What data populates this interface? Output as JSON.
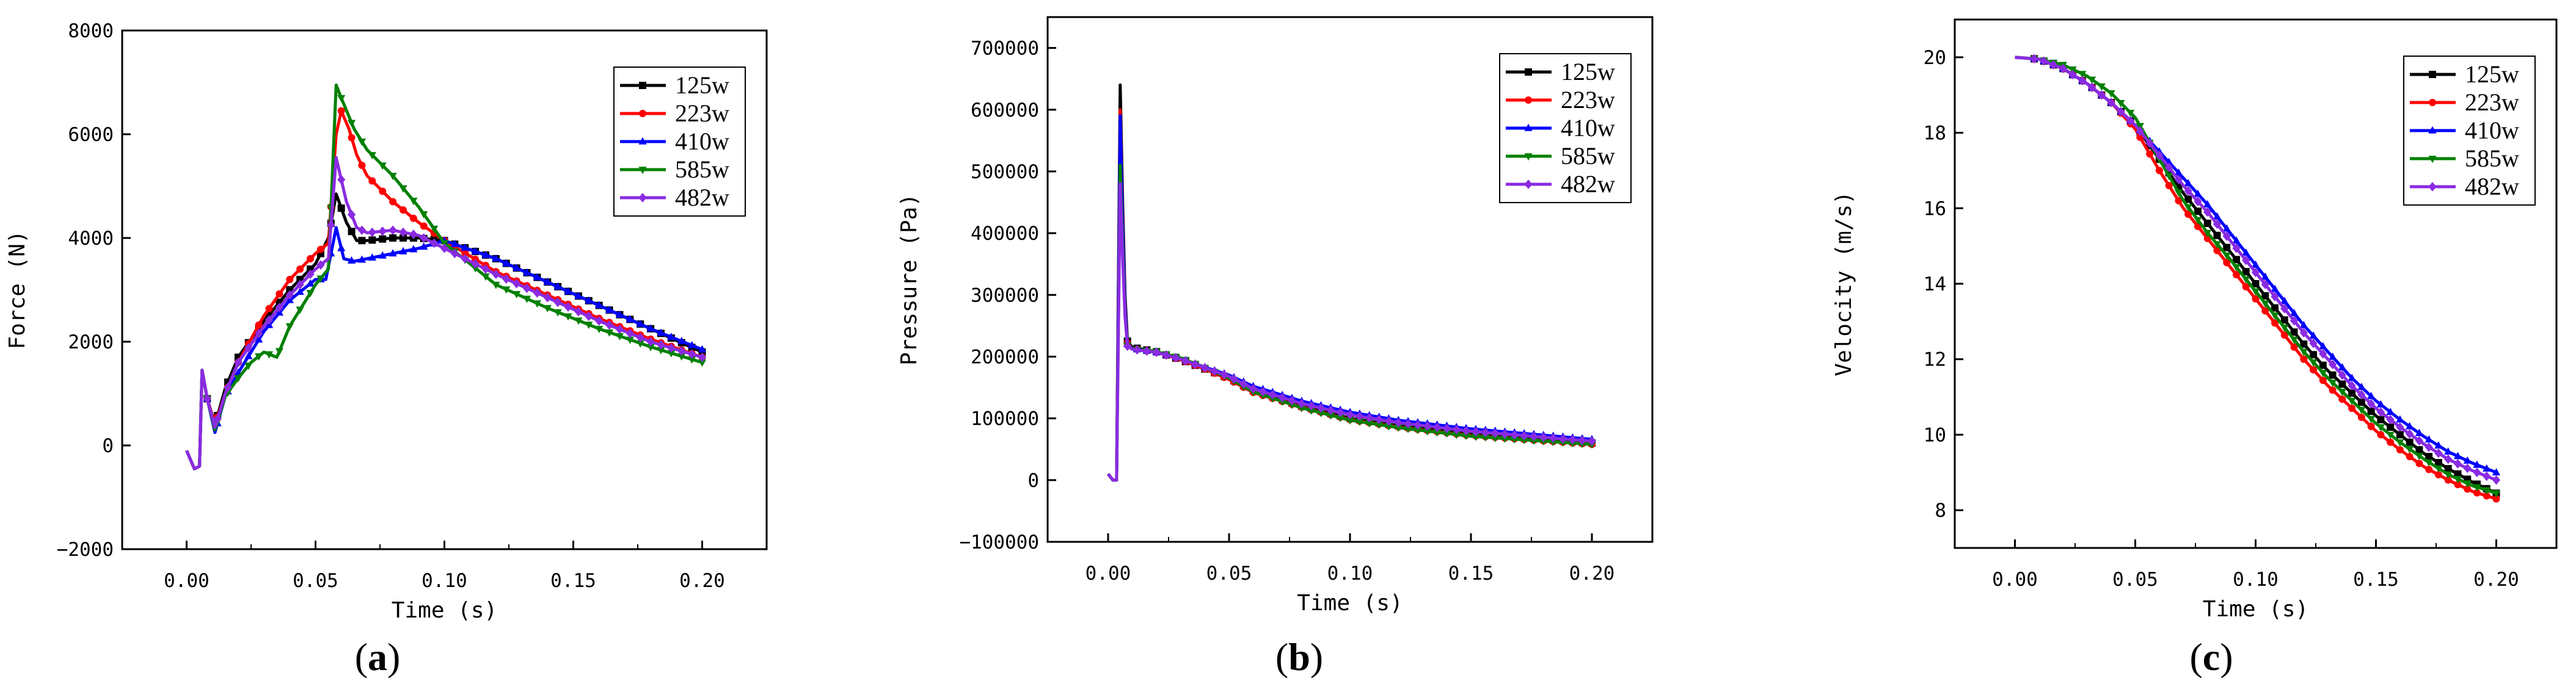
{
  "figure": {
    "panel_labels": [
      "(a)",
      "(b)",
      "(c)"
    ]
  },
  "colors": {
    "125w": "#000000",
    "223w": "#ff0000",
    "410w": "#0000ff",
    "585w": "#008000",
    "482w": "#8a2be2"
  },
  "chart_data": [
    {
      "type": "line",
      "panel": "(a)",
      "title": "",
      "xlabel": "Time (s)",
      "ylabel": "Force (N)",
      "xlim": [
        -0.025,
        0.225
      ],
      "ylim": [
        -2000,
        8000
      ],
      "xticks": [
        0.0,
        0.05,
        0.1,
        0.15,
        0.2
      ],
      "xtick_labels": [
        "0.00",
        "0.05",
        "0.10",
        "0.15",
        "0.20"
      ],
      "yticks": [
        -2000,
        0,
        2000,
        4000,
        6000,
        8000
      ],
      "ytick_labels": [
        "−2000",
        "0",
        "2000",
        "4000",
        "6000",
        "8000"
      ],
      "legend_position": "top-right",
      "series": [
        {
          "name": "125w",
          "x": [
            0,
            0.003,
            0.005,
            0.006,
            0.008,
            0.011,
            0.015,
            0.02,
            0.03,
            0.04,
            0.05,
            0.055,
            0.058,
            0.062,
            0.066,
            0.07,
            0.08,
            0.09,
            0.1,
            0.12,
            0.14,
            0.16,
            0.18,
            0.2
          ],
          "y": [
            -100,
            -450,
            -400,
            1450,
            900,
            400,
            1100,
            1700,
            2400,
            3000,
            3500,
            4000,
            4850,
            4300,
            3950,
            3950,
            4000,
            4000,
            3950,
            3600,
            3150,
            2700,
            2250,
            1800
          ]
        },
        {
          "name": "223w",
          "x": [
            0,
            0.003,
            0.005,
            0.006,
            0.008,
            0.011,
            0.015,
            0.02,
            0.03,
            0.04,
            0.05,
            0.055,
            0.058,
            0.06,
            0.063,
            0.066,
            0.07,
            0.08,
            0.09,
            0.1,
            0.12,
            0.14,
            0.16,
            0.18,
            0.2
          ],
          "y": [
            -100,
            -450,
            -400,
            1450,
            900,
            400,
            1000,
            1600,
            2500,
            3200,
            3700,
            3900,
            6000,
            6450,
            6100,
            5600,
            5200,
            4700,
            4300,
            3950,
            3350,
            2900,
            2450,
            2050,
            1700
          ]
        },
        {
          "name": "410w",
          "x": [
            0,
            0.003,
            0.005,
            0.006,
            0.008,
            0.011,
            0.015,
            0.02,
            0.03,
            0.04,
            0.05,
            0.054,
            0.058,
            0.061,
            0.065,
            0.07,
            0.08,
            0.09,
            0.1,
            0.12,
            0.14,
            0.16,
            0.18,
            0.2
          ],
          "y": [
            -100,
            -450,
            -400,
            1450,
            900,
            250,
            950,
            1400,
            2200,
            2800,
            3200,
            3200,
            4200,
            3600,
            3550,
            3600,
            3700,
            3800,
            3950,
            3600,
            3150,
            2700,
            2250,
            1850
          ]
        },
        {
          "name": "585w",
          "x": [
            0,
            0.003,
            0.005,
            0.006,
            0.008,
            0.011,
            0.015,
            0.02,
            0.025,
            0.03,
            0.035,
            0.04,
            0.05,
            0.055,
            0.058,
            0.06,
            0.065,
            0.07,
            0.08,
            0.09,
            0.1,
            0.12,
            0.14,
            0.16,
            0.18,
            0.2
          ],
          "y": [
            -100,
            -450,
            -400,
            1450,
            900,
            300,
            950,
            1300,
            1600,
            1800,
            1700,
            2300,
            3100,
            3400,
            6950,
            6700,
            6100,
            5700,
            5200,
            4600,
            3900,
            3100,
            2650,
            2250,
            1900,
            1600
          ]
        },
        {
          "name": "482w",
          "x": [
            0,
            0.003,
            0.005,
            0.006,
            0.008,
            0.011,
            0.015,
            0.02,
            0.03,
            0.04,
            0.05,
            0.055,
            0.058,
            0.062,
            0.066,
            0.07,
            0.08,
            0.09,
            0.1,
            0.12,
            0.14,
            0.16,
            0.18,
            0.2
          ],
          "y": [
            -100,
            -450,
            -400,
            1450,
            900,
            350,
            1000,
            1600,
            2300,
            2900,
            3400,
            3600,
            5550,
            4700,
            4200,
            4100,
            4150,
            4050,
            3800,
            3300,
            2850,
            2400,
            2000,
            1700
          ]
        }
      ]
    },
    {
      "type": "line",
      "panel": "(b)",
      "title": "",
      "xlabel": "Time (s)",
      "ylabel": "Pressure (Pa)",
      "xlim": [
        -0.025,
        0.225
      ],
      "ylim": [
        -100000,
        750000
      ],
      "xticks": [
        0.0,
        0.05,
        0.1,
        0.15,
        0.2
      ],
      "xtick_labels": [
        "0.00",
        "0.05",
        "0.10",
        "0.15",
        "0.20"
      ],
      "yticks": [
        -100000,
        0,
        100000,
        200000,
        300000,
        400000,
        500000,
        600000,
        700000
      ],
      "ytick_labels": [
        "−100000",
        "0",
        "100000",
        "200000",
        "300000",
        "400000",
        "500000",
        "600000",
        "700000"
      ],
      "legend_position": "top-right",
      "series": [
        {
          "name": "125w",
          "x": [
            0,
            0.002,
            0.0035,
            0.005,
            0.006,
            0.007,
            0.008,
            0.01,
            0.02,
            0.03,
            0.04,
            0.05,
            0.06,
            0.08,
            0.1,
            0.12,
            0.15,
            0.2
          ],
          "y": [
            10000,
            0,
            0,
            640000,
            450000,
            300000,
            225000,
            215000,
            208000,
            195000,
            180000,
            165000,
            145000,
            120000,
            100000,
            88000,
            75000,
            60000
          ]
        },
        {
          "name": "223w",
          "x": [
            0,
            0.002,
            0.0035,
            0.005,
            0.006,
            0.007,
            0.008,
            0.01,
            0.02,
            0.03,
            0.04,
            0.05,
            0.06,
            0.08,
            0.1,
            0.12,
            0.15,
            0.2
          ],
          "y": [
            10000,
            0,
            0,
            600000,
            430000,
            290000,
            222000,
            213000,
            207000,
            195000,
            180000,
            163000,
            142000,
            118000,
            98000,
            86000,
            72000,
            58000
          ]
        },
        {
          "name": "410w",
          "x": [
            0,
            0.002,
            0.0035,
            0.005,
            0.006,
            0.007,
            0.008,
            0.01,
            0.02,
            0.03,
            0.04,
            0.05,
            0.06,
            0.08,
            0.1,
            0.12,
            0.15,
            0.2
          ],
          "y": [
            10000,
            0,
            0,
            590000,
            420000,
            285000,
            220000,
            213000,
            207000,
            197000,
            183000,
            170000,
            152000,
            128000,
            110000,
            97000,
            83000,
            66000
          ]
        },
        {
          "name": "585w",
          "x": [
            0,
            0.002,
            0.0035,
            0.005,
            0.006,
            0.007,
            0.008,
            0.01,
            0.02,
            0.03,
            0.04,
            0.05,
            0.06,
            0.08,
            0.1,
            0.12,
            0.15,
            0.2
          ],
          "y": [
            10000,
            0,
            0,
            510000,
            380000,
            270000,
            218000,
            212000,
            208000,
            198000,
            182000,
            165000,
            143000,
            117000,
            97000,
            85000,
            71000,
            58000
          ]
        },
        {
          "name": "482w",
          "x": [
            0,
            0.002,
            0.0035,
            0.005,
            0.006,
            0.007,
            0.008,
            0.01,
            0.02,
            0.03,
            0.04,
            0.05,
            0.06,
            0.08,
            0.1,
            0.12,
            0.15,
            0.2
          ],
          "y": [
            10000,
            0,
            0,
            480000,
            360000,
            265000,
            217000,
            212000,
            207000,
            196000,
            182000,
            168000,
            148000,
            124000,
            106000,
            93000,
            79000,
            63000
          ]
        }
      ]
    },
    {
      "type": "line",
      "panel": "(c)",
      "title": "",
      "xlabel": "Time (s)",
      "ylabel": "Velocity (m/s)",
      "xlim": [
        -0.025,
        0.225
      ],
      "ylim": [
        7,
        21
      ],
      "xticks": [
        0.0,
        0.05,
        0.1,
        0.15,
        0.2
      ],
      "xtick_labels": [
        "0.00",
        "0.05",
        "0.10",
        "0.15",
        "0.20"
      ],
      "yticks": [
        8,
        10,
        12,
        14,
        16,
        18,
        20
      ],
      "ytick_labels": [
        "8",
        "10",
        "12",
        "14",
        "16",
        "18",
        "20"
      ],
      "legend_position": "top-right",
      "series": [
        {
          "name": "125w",
          "x": [
            0,
            0.01,
            0.02,
            0.03,
            0.04,
            0.05,
            0.06,
            0.07,
            0.08,
            0.09,
            0.1,
            0.11,
            0.12,
            0.13,
            0.14,
            0.15,
            0.16,
            0.17,
            0.18,
            0.19,
            0.2
          ],
          "y": [
            20,
            19.95,
            19.7,
            19.3,
            18.8,
            18.2,
            17.3,
            16.4,
            15.6,
            14.8,
            14.0,
            13.2,
            12.4,
            11.7,
            11.1,
            10.5,
            10.0,
            9.5,
            9.1,
            8.75,
            8.45
          ]
        },
        {
          "name": "223w",
          "x": [
            0,
            0.01,
            0.02,
            0.03,
            0.04,
            0.05,
            0.06,
            0.07,
            0.08,
            0.09,
            0.1,
            0.11,
            0.12,
            0.13,
            0.14,
            0.15,
            0.16,
            0.17,
            0.18,
            0.19,
            0.2
          ],
          "y": [
            20,
            19.95,
            19.7,
            19.3,
            18.8,
            18.1,
            17.0,
            16.0,
            15.2,
            14.4,
            13.6,
            12.8,
            12.0,
            11.3,
            10.7,
            10.1,
            9.6,
            9.15,
            8.8,
            8.5,
            8.3
          ]
        },
        {
          "name": "410w",
          "x": [
            0,
            0.01,
            0.02,
            0.03,
            0.04,
            0.05,
            0.06,
            0.07,
            0.08,
            0.09,
            0.1,
            0.11,
            0.12,
            0.13,
            0.14,
            0.15,
            0.16,
            0.17,
            0.18,
            0.19,
            0.2
          ],
          "y": [
            20,
            19.95,
            19.7,
            19.3,
            18.8,
            18.2,
            17.5,
            16.8,
            16.1,
            15.3,
            14.5,
            13.7,
            12.9,
            12.2,
            11.5,
            10.9,
            10.4,
            9.95,
            9.55,
            9.25,
            9.0
          ]
        },
        {
          "name": "585w",
          "x": [
            0,
            0.01,
            0.02,
            0.03,
            0.04,
            0.05,
            0.06,
            0.07,
            0.08,
            0.09,
            0.1,
            0.11,
            0.12,
            0.13,
            0.14,
            0.15,
            0.16,
            0.17,
            0.18,
            0.19,
            0.2
          ],
          "y": [
            20,
            19.95,
            19.8,
            19.5,
            19.05,
            18.4,
            17.3,
            16.2,
            15.35,
            14.6,
            13.8,
            13.0,
            12.2,
            11.5,
            10.9,
            10.3,
            9.8,
            9.35,
            8.95,
            8.65,
            8.45
          ]
        },
        {
          "name": "482w",
          "x": [
            0,
            0.01,
            0.02,
            0.03,
            0.04,
            0.05,
            0.06,
            0.07,
            0.08,
            0.09,
            0.1,
            0.11,
            0.12,
            0.13,
            0.14,
            0.15,
            0.16,
            0.17,
            0.18,
            0.19,
            0.2
          ],
          "y": [
            20,
            19.95,
            19.7,
            19.3,
            18.8,
            18.2,
            17.4,
            16.6,
            15.9,
            15.1,
            14.3,
            13.5,
            12.7,
            12.0,
            11.3,
            10.7,
            10.2,
            9.75,
            9.35,
            9.05,
            8.8
          ]
        }
      ]
    }
  ]
}
